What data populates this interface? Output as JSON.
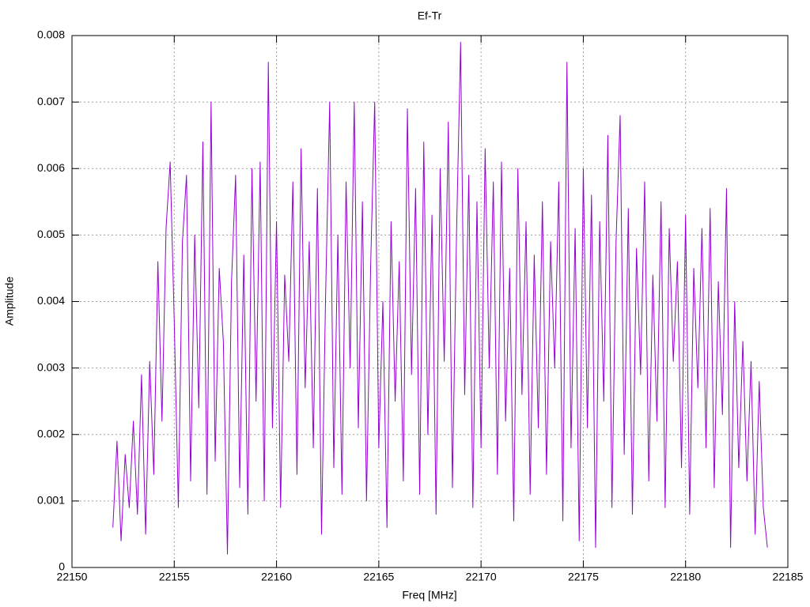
{
  "chart_data": {
    "type": "line",
    "title": "Ef-Tr",
    "xlabel": "Freq [MHz]",
    "ylabel": "Amplitude",
    "x": [
      22152,
      22152.2,
      22152.4,
      22152.6,
      22152.8,
      22153,
      22153.2,
      22153.4,
      22153.6,
      22153.8,
      22154,
      22154.2,
      22154.4,
      22154.6,
      22154.8,
      22155,
      22155.2,
      22155.4,
      22155.6,
      22155.8,
      22156,
      22156.2,
      22156.4,
      22156.6,
      22156.8,
      22157,
      22157.2,
      22157.4,
      22157.6,
      22157.8,
      22158,
      22158.2,
      22158.4,
      22158.6,
      22158.8,
      22159,
      22159.2,
      22159.4,
      22159.6,
      22159.8,
      22160,
      22160.2,
      22160.4,
      22160.6,
      22160.8,
      22161,
      22161.2,
      22161.4,
      22161.6,
      22161.8,
      22162,
      22162.2,
      22162.4,
      22162.6,
      22162.8,
      22163,
      22163.2,
      22163.4,
      22163.6,
      22163.8,
      22164,
      22164.2,
      22164.4,
      22164.6,
      22164.8,
      22165,
      22165.2,
      22165.4,
      22165.6,
      22165.8,
      22166,
      22166.2,
      22166.4,
      22166.6,
      22166.8,
      22167,
      22167.2,
      22167.4,
      22167.6,
      22167.8,
      22168,
      22168.2,
      22168.4,
      22168.6,
      22168.8,
      22169,
      22169.2,
      22169.4,
      22169.6,
      22169.8,
      22170,
      22170.2,
      22170.4,
      22170.6,
      22170.8,
      22171,
      22171.2,
      22171.4,
      22171.6,
      22171.8,
      22172,
      22172.2,
      22172.4,
      22172.6,
      22172.8,
      22173,
      22173.2,
      22173.4,
      22173.6,
      22173.8,
      22174,
      22174.2,
      22174.4,
      22174.6,
      22174.8,
      22175,
      22175.2,
      22175.4,
      22175.6,
      22175.8,
      22176,
      22176.2,
      22176.4,
      22176.6,
      22176.8,
      22177,
      22177.2,
      22177.4,
      22177.6,
      22177.8,
      22178,
      22178.2,
      22178.4,
      22178.6,
      22178.8,
      22179,
      22179.2,
      22179.4,
      22179.6,
      22179.8,
      22180,
      22180.2,
      22180.4,
      22180.6,
      22180.8,
      22181,
      22181.2,
      22181.4,
      22181.6,
      22181.8,
      22182,
      22182.2,
      22182.4,
      22182.6,
      22182.8,
      22183,
      22183.2,
      22183.4,
      22183.6,
      22183.8,
      22184
    ],
    "series": [
      {
        "color": "#9400d3",
        "values": [
          0.0006,
          0.0019,
          0.0004,
          0.0017,
          0.0009,
          0.0022,
          0.0008,
          0.0029,
          0.0005,
          0.0031,
          0.0014,
          0.0046,
          0.0022,
          0.0051,
          0.0061,
          0.0037,
          0.0009,
          0.0049,
          0.0059,
          0.0013,
          0.005,
          0.0024,
          0.0064,
          0.0011,
          0.007,
          0.0016,
          0.0045,
          0.0034,
          0.0002,
          0.0043,
          0.0059,
          0.0012,
          0.0047,
          0.0008,
          0.006,
          0.0025,
          0.0061,
          0.001,
          0.0076,
          0.0021,
          0.0052,
          0.0009,
          0.0044,
          0.0031,
          0.0058,
          0.0014,
          0.0063,
          0.0027,
          0.0049,
          0.0018,
          0.0057,
          0.0005,
          0.0041,
          0.007,
          0.0015,
          0.005,
          0.0011,
          0.0058,
          0.003,
          0.007,
          0.0021,
          0.0055,
          0.001,
          0.0045,
          0.007,
          0.0018,
          0.004,
          0.0006,
          0.0052,
          0.0025,
          0.0046,
          0.0013,
          0.0069,
          0.0029,
          0.0057,
          0.0011,
          0.0064,
          0.002,
          0.0053,
          0.0008,
          0.006,
          0.0031,
          0.0067,
          0.0012,
          0.005,
          0.0079,
          0.0026,
          0.0059,
          0.0009,
          0.0055,
          0.0018,
          0.0063,
          0.003,
          0.0058,
          0.0014,
          0.0061,
          0.0022,
          0.0045,
          0.0007,
          0.006,
          0.0026,
          0.0052,
          0.0011,
          0.0047,
          0.0021,
          0.0055,
          0.0014,
          0.0049,
          0.003,
          0.0058,
          0.0007,
          0.0076,
          0.0018,
          0.0051,
          0.0004,
          0.006,
          0.0021,
          0.0056,
          0.0003,
          0.0052,
          0.0025,
          0.0065,
          0.0009,
          0.0049,
          0.0068,
          0.0017,
          0.0054,
          0.0008,
          0.0048,
          0.0029,
          0.0058,
          0.0013,
          0.0044,
          0.0022,
          0.0055,
          0.0009,
          0.0051,
          0.0031,
          0.0046,
          0.0015,
          0.0053,
          0.0008,
          0.0045,
          0.0027,
          0.0051,
          0.0018,
          0.0054,
          0.0012,
          0.0043,
          0.0023,
          0.0057,
          0.0003,
          0.004,
          0.0015,
          0.0034,
          0.0013,
          0.0031,
          0.0005,
          0.0028,
          0.0009,
          0.0003
        ]
      }
    ],
    "xlim": [
      22150,
      22185
    ],
    "xticks": [
      22150,
      22155,
      22160,
      22165,
      22170,
      22175,
      22180,
      22185
    ],
    "ylim": [
      0,
      0.008
    ],
    "yticks": [
      0,
      0.001,
      0.002,
      0.003,
      0.004,
      0.005,
      0.006,
      0.007,
      0.008
    ],
    "grid": true
  }
}
